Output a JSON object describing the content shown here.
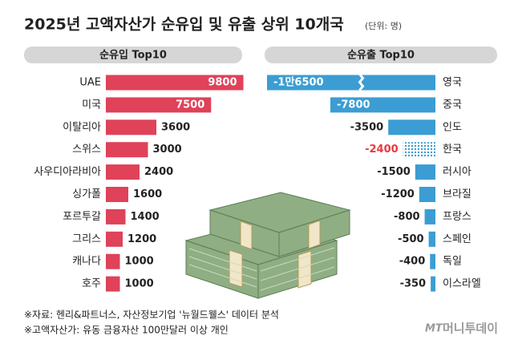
{
  "title": "2025년 고액자산가 순유입 및 유출 상위 10개국",
  "unit": "(단위: 명)",
  "chart_data": [
    {
      "type": "bar",
      "orientation": "horizontal",
      "title": "순유입 Top10",
      "categories": [
        "UAE",
        "미국",
        "이탈리아",
        "스위스",
        "사우디아라비아",
        "싱가폴",
        "포르투갈",
        "그리스",
        "캐나다",
        "호주"
      ],
      "values": [
        9800,
        7500,
        3600,
        3000,
        2400,
        1600,
        1400,
        1200,
        1000,
        1000
      ],
      "color": "#df4259"
    },
    {
      "type": "bar",
      "orientation": "horizontal",
      "title": "순유출 Top10",
      "categories": [
        "영국",
        "중국",
        "인도",
        "한국",
        "러시아",
        "브라질",
        "프랑스",
        "스페인",
        "독일",
        "이스라엘"
      ],
      "values": [
        -16500,
        -7800,
        -3500,
        -2400,
        -1500,
        -1200,
        -800,
        -500,
        -400,
        -350
      ],
      "value_labels": [
        "-1만6500",
        "-7800",
        "-3500",
        "-2400",
        "-1500",
        "-1200",
        "-800",
        "-500",
        "-400",
        "-350"
      ],
      "color": "#3b9dd3",
      "highlight_index": 3,
      "highlight_color": "#e8393f"
    }
  ],
  "notes": [
    "※자료: 헨리&파트너스, 자산정보기업 '뉴월드웰스' 데이터 분석",
    "※고액자산가: 유동 금융자산 100만달러 이상 개인"
  ],
  "logo_mark": "MT",
  "logo": "머니투데이"
}
